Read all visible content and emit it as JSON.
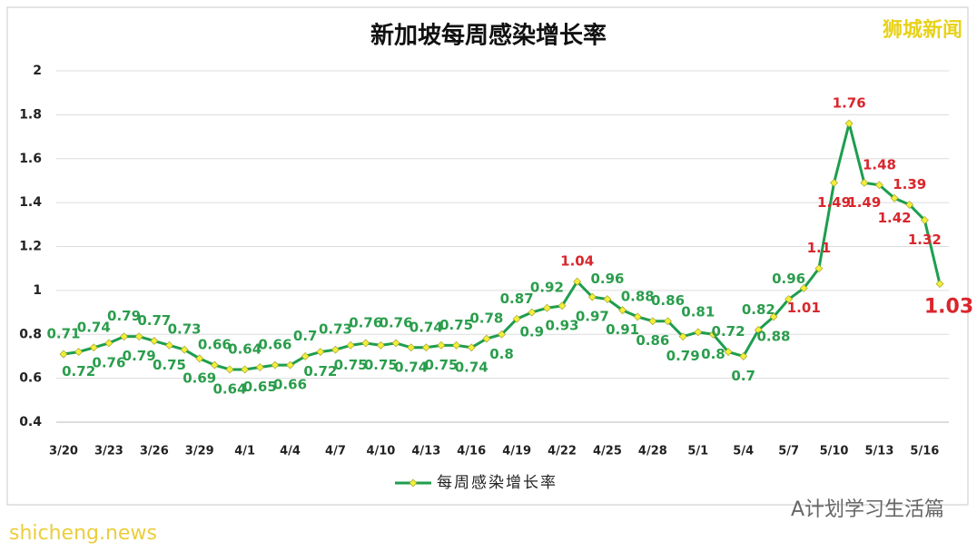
{
  "chart_data": {
    "type": "line",
    "title": "新加坡每周感染增长率",
    "brand": "狮城新闻",
    "watermarks": [
      "shicheng.news",
      "A计划学习生活篇"
    ],
    "categories": [
      "3/20",
      "3/21",
      "3/22",
      "3/23",
      "3/24",
      "3/25",
      "3/26",
      "3/27",
      "3/28",
      "3/29",
      "3/30",
      "3/31",
      "4/1",
      "4/2",
      "4/3",
      "4/4",
      "4/5",
      "4/6",
      "4/7",
      "4/8",
      "4/9",
      "4/10",
      "4/11",
      "4/12",
      "4/13",
      "4/14",
      "4/15",
      "4/16",
      "4/17",
      "4/18",
      "4/19",
      "4/20",
      "4/21",
      "4/22",
      "4/23",
      "4/24",
      "4/25",
      "4/26",
      "4/27",
      "4/28",
      "4/29",
      "4/30",
      "5/1",
      "5/2",
      "5/3",
      "5/4",
      "5/5",
      "5/6",
      "5/7",
      "5/8",
      "5/9",
      "5/10",
      "5/11",
      "5/12",
      "5/13",
      "5/14",
      "5/15",
      "5/16",
      "5/17"
    ],
    "xtick_every": 3,
    "series": [
      {
        "name": "每周感染增长率",
        "color": "#1e9e4e",
        "marker_color": "#f2ee3a",
        "values": [
          0.71,
          0.72,
          0.74,
          0.76,
          0.79,
          0.79,
          0.77,
          0.75,
          0.73,
          0.69,
          0.66,
          0.64,
          0.64,
          0.65,
          0.66,
          0.66,
          0.7,
          0.72,
          0.73,
          0.75,
          0.76,
          0.75,
          0.76,
          0.74,
          0.74,
          0.75,
          0.75,
          0.74,
          0.78,
          0.8,
          0.87,
          0.9,
          0.92,
          0.93,
          1.04,
          0.97,
          0.96,
          0.91,
          0.88,
          0.86,
          0.86,
          0.79,
          0.81,
          0.8,
          0.72,
          0.7,
          0.82,
          0.88,
          0.96,
          1.01,
          1.1,
          1.49,
          1.76,
          1.49,
          1.48,
          1.42,
          1.39,
          1.32,
          1.03
        ],
        "label_colors": [
          "#2a9d4c",
          "#2a9d4c",
          "#2a9d4c",
          "#2a9d4c",
          "#2a9d4c",
          "#2a9d4c",
          "#2a9d4c",
          "#2a9d4c",
          "#2a9d4c",
          "#2a9d4c",
          "#2a9d4c",
          "#2a9d4c",
          "#2a9d4c",
          "#2a9d4c",
          "#2a9d4c",
          "#2a9d4c",
          "#2a9d4c",
          "#2a9d4c",
          "#2a9d4c",
          "#2a9d4c",
          "#2a9d4c",
          "#2a9d4c",
          "#2a9d4c",
          "#2a9d4c",
          "#2a9d4c",
          "#2a9d4c",
          "#2a9d4c",
          "#2a9d4c",
          "#2a9d4c",
          "#2a9d4c",
          "#2a9d4c",
          "#2a9d4c",
          "#2a9d4c",
          "#2a9d4c",
          "#d9262c",
          "#2a9d4c",
          "#2a9d4c",
          "#2a9d4c",
          "#2a9d4c",
          "#2a9d4c",
          "#2a9d4c",
          "#2a9d4c",
          "#2a9d4c",
          "#2a9d4c",
          "#2a9d4c",
          "#2a9d4c",
          "#2a9d4c",
          "#2a9d4c",
          "#2a9d4c",
          "#d9262c",
          "#d9262c",
          "#d9262c",
          "#d9262c",
          "#d9262c",
          "#d9262c",
          "#d9262c",
          "#d9262c",
          "#d9262c",
          "#d9262c"
        ]
      }
    ],
    "ylim": [
      0.4,
      2
    ],
    "yticks": [
      0.4,
      0.6,
      0.8,
      1,
      1.2,
      1.4,
      1.6,
      1.8,
      2
    ],
    "grid": true,
    "legend": "bottom"
  }
}
